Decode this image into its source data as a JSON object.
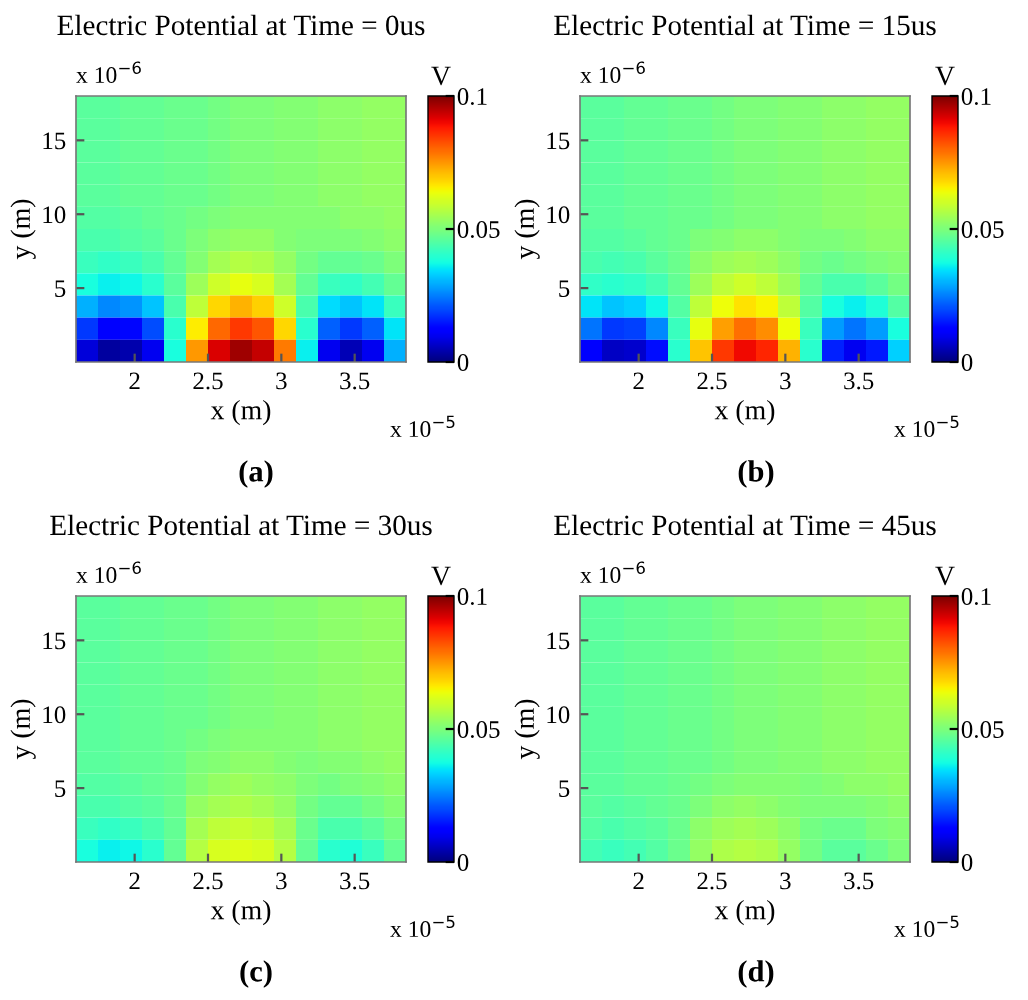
{
  "chart_data": [
    {
      "type": "heatmap",
      "title": "Electric Potential at Time = 0us",
      "xlabel": "x (m)",
      "ylabel": "y (m)",
      "clabel": "V",
      "annotations": [
        "x 10$^{−6}$",
        "x 10$^{−5}$",
        "(a)"
      ],
      "xlim": [
        1.6,
        3.85
      ],
      "xticks": [
        2,
        2.5,
        3,
        3.5
      ],
      "ylim": [
        0,
        18
      ],
      "yticks": [
        5,
        10,
        15
      ],
      "clim": [
        0,
        0.1
      ],
      "cticks": [
        0,
        0.05,
        0.1
      ],
      "cells": [
        [
          0.046,
          0.046,
          0.047,
          0.047,
          0.048,
          0.048,
          0.049,
          0.05,
          0.05,
          0.051,
          0.051,
          0.052,
          0.052,
          0.053,
          0.053
        ],
        [
          0.046,
          0.046,
          0.047,
          0.047,
          0.048,
          0.048,
          0.049,
          0.05,
          0.05,
          0.051,
          0.051,
          0.052,
          0.052,
          0.053,
          0.053
        ],
        [
          0.046,
          0.046,
          0.047,
          0.047,
          0.048,
          0.048,
          0.049,
          0.05,
          0.05,
          0.051,
          0.051,
          0.052,
          0.052,
          0.053,
          0.053
        ],
        [
          0.046,
          0.046,
          0.047,
          0.047,
          0.048,
          0.048,
          0.049,
          0.05,
          0.05,
          0.051,
          0.051,
          0.052,
          0.052,
          0.053,
          0.053
        ],
        [
          0.046,
          0.046,
          0.047,
          0.047,
          0.048,
          0.048,
          0.049,
          0.05,
          0.05,
          0.051,
          0.051,
          0.052,
          0.052,
          0.053,
          0.053
        ],
        [
          0.045,
          0.045,
          0.046,
          0.047,
          0.048,
          0.049,
          0.05,
          0.051,
          0.051,
          0.051,
          0.051,
          0.051,
          0.052,
          0.052,
          0.053
        ],
        [
          0.044,
          0.044,
          0.045,
          0.046,
          0.048,
          0.05,
          0.052,
          0.053,
          0.053,
          0.051,
          0.05,
          0.05,
          0.05,
          0.051,
          0.052
        ],
        [
          0.042,
          0.041,
          0.042,
          0.044,
          0.047,
          0.051,
          0.055,
          0.057,
          0.056,
          0.053,
          0.049,
          0.047,
          0.047,
          0.048,
          0.05
        ],
        [
          0.038,
          0.036,
          0.037,
          0.04,
          0.046,
          0.054,
          0.06,
          0.063,
          0.061,
          0.055,
          0.047,
          0.042,
          0.041,
          0.043,
          0.047
        ],
        [
          0.03,
          0.026,
          0.027,
          0.032,
          0.044,
          0.058,
          0.068,
          0.072,
          0.069,
          0.06,
          0.044,
          0.034,
          0.032,
          0.035,
          0.042
        ],
        [
          0.018,
          0.012,
          0.013,
          0.02,
          0.04,
          0.066,
          0.08,
          0.085,
          0.082,
          0.068,
          0.04,
          0.022,
          0.018,
          0.022,
          0.035
        ],
        [
          0.008,
          0.003,
          0.004,
          0.01,
          0.038,
          0.075,
          0.092,
          0.097,
          0.094,
          0.078,
          0.036,
          0.01,
          0.005,
          0.01,
          0.03
        ]
      ]
    },
    {
      "type": "heatmap",
      "title": "Electric Potential at Time = 15us",
      "xlabel": "x (m)",
      "ylabel": "y (m)",
      "clabel": "V",
      "annotations": [
        "x 10$^{−6}$",
        "x 10$^{−5}$",
        "(b)"
      ],
      "xlim": [
        1.6,
        3.85
      ],
      "xticks": [
        2,
        2.5,
        3,
        3.5
      ],
      "ylim": [
        0,
        18
      ],
      "yticks": [
        5,
        10,
        15
      ],
      "clim": [
        0,
        0.1
      ],
      "cticks": [
        0,
        0.05,
        0.1
      ],
      "cells": [
        [
          0.046,
          0.046,
          0.047,
          0.047,
          0.048,
          0.048,
          0.049,
          0.05,
          0.05,
          0.051,
          0.051,
          0.052,
          0.052,
          0.053,
          0.053
        ],
        [
          0.046,
          0.046,
          0.047,
          0.047,
          0.048,
          0.048,
          0.049,
          0.05,
          0.05,
          0.051,
          0.051,
          0.052,
          0.052,
          0.053,
          0.053
        ],
        [
          0.046,
          0.046,
          0.047,
          0.047,
          0.048,
          0.048,
          0.049,
          0.05,
          0.05,
          0.051,
          0.051,
          0.052,
          0.052,
          0.053,
          0.053
        ],
        [
          0.046,
          0.046,
          0.047,
          0.047,
          0.048,
          0.048,
          0.049,
          0.05,
          0.05,
          0.051,
          0.051,
          0.052,
          0.052,
          0.053,
          0.053
        ],
        [
          0.046,
          0.046,
          0.047,
          0.047,
          0.048,
          0.048,
          0.049,
          0.05,
          0.05,
          0.051,
          0.051,
          0.052,
          0.052,
          0.053,
          0.053
        ],
        [
          0.046,
          0.046,
          0.047,
          0.047,
          0.048,
          0.048,
          0.049,
          0.05,
          0.05,
          0.051,
          0.051,
          0.052,
          0.052,
          0.053,
          0.053
        ],
        [
          0.045,
          0.045,
          0.046,
          0.047,
          0.048,
          0.05,
          0.051,
          0.052,
          0.052,
          0.051,
          0.05,
          0.05,
          0.051,
          0.052,
          0.052
        ],
        [
          0.044,
          0.043,
          0.044,
          0.046,
          0.048,
          0.052,
          0.054,
          0.055,
          0.054,
          0.052,
          0.049,
          0.048,
          0.049,
          0.05,
          0.051
        ],
        [
          0.041,
          0.04,
          0.041,
          0.043,
          0.047,
          0.054,
          0.058,
          0.06,
          0.058,
          0.054,
          0.047,
          0.044,
          0.044,
          0.046,
          0.049
        ],
        [
          0.035,
          0.032,
          0.033,
          0.037,
          0.045,
          0.058,
          0.064,
          0.067,
          0.065,
          0.058,
          0.045,
          0.038,
          0.036,
          0.039,
          0.045
        ],
        [
          0.024,
          0.018,
          0.019,
          0.026,
          0.042,
          0.063,
          0.074,
          0.079,
          0.076,
          0.064,
          0.042,
          0.028,
          0.024,
          0.028,
          0.038
        ],
        [
          0.012,
          0.006,
          0.007,
          0.014,
          0.04,
          0.07,
          0.085,
          0.09,
          0.087,
          0.072,
          0.04,
          0.016,
          0.01,
          0.015,
          0.033
        ]
      ]
    },
    {
      "type": "heatmap",
      "title": "Electric Potential at Time = 30us",
      "xlabel": "x (m)",
      "ylabel": "y (m)",
      "clabel": "V",
      "annotations": [
        "x 10$^{−6}$",
        "x 10$^{−5}$",
        "(c)"
      ],
      "xlim": [
        1.6,
        3.85
      ],
      "xticks": [
        2,
        2.5,
        3,
        3.5
      ],
      "ylim": [
        0,
        18
      ],
      "yticks": [
        5,
        10,
        15
      ],
      "clim": [
        0,
        0.1
      ],
      "cticks": [
        0,
        0.05,
        0.1
      ],
      "cells": [
        [
          0.046,
          0.046,
          0.047,
          0.047,
          0.048,
          0.048,
          0.049,
          0.05,
          0.05,
          0.051,
          0.051,
          0.052,
          0.052,
          0.053,
          0.053
        ],
        [
          0.046,
          0.046,
          0.047,
          0.047,
          0.048,
          0.048,
          0.049,
          0.05,
          0.05,
          0.051,
          0.051,
          0.052,
          0.052,
          0.053,
          0.053
        ],
        [
          0.046,
          0.046,
          0.047,
          0.047,
          0.048,
          0.048,
          0.049,
          0.05,
          0.05,
          0.051,
          0.051,
          0.052,
          0.052,
          0.053,
          0.053
        ],
        [
          0.046,
          0.046,
          0.047,
          0.047,
          0.048,
          0.048,
          0.049,
          0.05,
          0.05,
          0.051,
          0.051,
          0.052,
          0.052,
          0.053,
          0.053
        ],
        [
          0.046,
          0.046,
          0.047,
          0.047,
          0.048,
          0.048,
          0.049,
          0.05,
          0.05,
          0.051,
          0.051,
          0.052,
          0.052,
          0.053,
          0.053
        ],
        [
          0.046,
          0.046,
          0.047,
          0.047,
          0.048,
          0.048,
          0.049,
          0.05,
          0.05,
          0.051,
          0.051,
          0.052,
          0.052,
          0.053,
          0.053
        ],
        [
          0.046,
          0.046,
          0.047,
          0.047,
          0.048,
          0.049,
          0.05,
          0.051,
          0.051,
          0.051,
          0.051,
          0.052,
          0.052,
          0.053,
          0.053
        ],
        [
          0.046,
          0.046,
          0.047,
          0.047,
          0.048,
          0.05,
          0.051,
          0.052,
          0.052,
          0.051,
          0.05,
          0.051,
          0.051,
          0.052,
          0.053
        ],
        [
          0.045,
          0.045,
          0.046,
          0.047,
          0.048,
          0.051,
          0.053,
          0.054,
          0.053,
          0.052,
          0.05,
          0.049,
          0.05,
          0.051,
          0.052
        ],
        [
          0.044,
          0.044,
          0.045,
          0.046,
          0.048,
          0.053,
          0.055,
          0.056,
          0.055,
          0.053,
          0.049,
          0.047,
          0.047,
          0.049,
          0.051
        ],
        [
          0.042,
          0.041,
          0.042,
          0.044,
          0.047,
          0.055,
          0.058,
          0.059,
          0.058,
          0.055,
          0.048,
          0.044,
          0.044,
          0.046,
          0.049
        ],
        [
          0.038,
          0.036,
          0.037,
          0.04,
          0.047,
          0.057,
          0.061,
          0.062,
          0.061,
          0.057,
          0.047,
          0.04,
          0.039,
          0.042,
          0.047
        ]
      ]
    },
    {
      "type": "heatmap",
      "title": "Electric Potential at Time = 45us",
      "xlabel": "x (m)",
      "ylabel": "y (m)",
      "clabel": "V",
      "annotations": [
        "x 10$^{−6}$",
        "x 10$^{−5}$",
        "(d)"
      ],
      "xlim": [
        1.6,
        3.85
      ],
      "xticks": [
        2,
        2.5,
        3,
        3.5
      ],
      "ylim": [
        0,
        18
      ],
      "yticks": [
        5,
        10,
        15
      ],
      "clim": [
        0,
        0.1
      ],
      "cticks": [
        0,
        0.05,
        0.1
      ],
      "cells": [
        [
          0.046,
          0.046,
          0.047,
          0.047,
          0.048,
          0.048,
          0.049,
          0.05,
          0.05,
          0.051,
          0.051,
          0.052,
          0.052,
          0.053,
          0.053
        ],
        [
          0.046,
          0.046,
          0.047,
          0.047,
          0.048,
          0.048,
          0.049,
          0.05,
          0.05,
          0.051,
          0.051,
          0.052,
          0.052,
          0.053,
          0.053
        ],
        [
          0.046,
          0.046,
          0.047,
          0.047,
          0.048,
          0.048,
          0.049,
          0.05,
          0.05,
          0.051,
          0.051,
          0.052,
          0.052,
          0.053,
          0.053
        ],
        [
          0.046,
          0.046,
          0.047,
          0.047,
          0.048,
          0.048,
          0.049,
          0.05,
          0.05,
          0.051,
          0.051,
          0.052,
          0.052,
          0.053,
          0.053
        ],
        [
          0.046,
          0.046,
          0.047,
          0.047,
          0.048,
          0.048,
          0.049,
          0.05,
          0.05,
          0.051,
          0.051,
          0.052,
          0.052,
          0.053,
          0.053
        ],
        [
          0.046,
          0.046,
          0.047,
          0.047,
          0.048,
          0.048,
          0.049,
          0.05,
          0.05,
          0.051,
          0.051,
          0.052,
          0.052,
          0.053,
          0.053
        ],
        [
          0.046,
          0.046,
          0.047,
          0.047,
          0.048,
          0.048,
          0.049,
          0.05,
          0.05,
          0.051,
          0.051,
          0.052,
          0.052,
          0.053,
          0.053
        ],
        [
          0.046,
          0.046,
          0.047,
          0.047,
          0.048,
          0.048,
          0.049,
          0.05,
          0.05,
          0.051,
          0.051,
          0.052,
          0.052,
          0.053,
          0.053
        ],
        [
          0.046,
          0.046,
          0.047,
          0.047,
          0.048,
          0.049,
          0.05,
          0.051,
          0.051,
          0.051,
          0.05,
          0.051,
          0.052,
          0.052,
          0.053
        ],
        [
          0.046,
          0.045,
          0.046,
          0.047,
          0.048,
          0.05,
          0.052,
          0.053,
          0.052,
          0.051,
          0.05,
          0.05,
          0.05,
          0.051,
          0.052
        ],
        [
          0.045,
          0.044,
          0.045,
          0.046,
          0.048,
          0.052,
          0.054,
          0.055,
          0.054,
          0.052,
          0.049,
          0.048,
          0.048,
          0.05,
          0.051
        ],
        [
          0.043,
          0.042,
          0.043,
          0.045,
          0.048,
          0.053,
          0.056,
          0.057,
          0.056,
          0.053,
          0.049,
          0.046,
          0.046,
          0.048,
          0.05
        ]
      ]
    }
  ]
}
